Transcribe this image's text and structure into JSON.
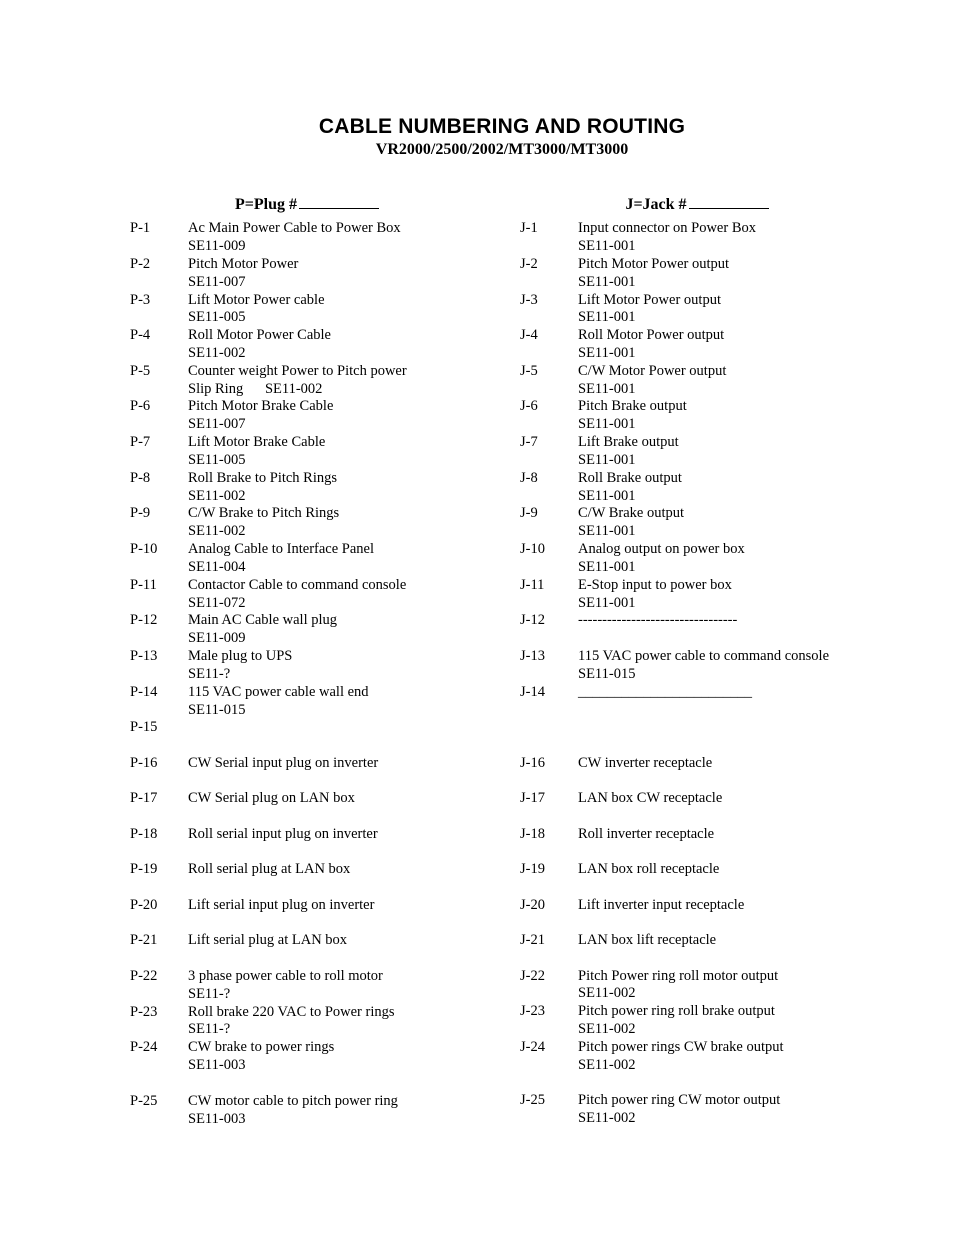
{
  "title": "CABLE NUMBERING AND ROUTING",
  "subtitle": "VR2000/2500/2002/MT3000/MT3000",
  "plug_heading": "P=Plug #",
  "jack_heading": "J=Jack #",
  "plugs": [
    {
      "id": "P-1",
      "l1": "Ac Main Power Cable to Power Box",
      "l2": "SE11-009"
    },
    {
      "id": "P-2",
      "l1": "Pitch Motor Power",
      "l2": "SE11-007"
    },
    {
      "id": "P-3",
      "l1": "Lift Motor Power cable",
      "l2": "SE11-005"
    },
    {
      "id": "P-4",
      "l1": "Roll Motor Power Cable",
      "l2": "SE11-002"
    },
    {
      "id": "P-5",
      "l1": "Counter weight Power to Pitch power",
      "l2": "Slip Ring  SE11-002"
    },
    {
      "id": "P-6",
      "l1": "Pitch Motor Brake Cable",
      "l2": "SE11-007"
    },
    {
      "id": "P-7",
      "l1": "Lift Motor Brake Cable",
      "l2": "SE11-005"
    },
    {
      "id": "P-8",
      "l1": "Roll Brake to Pitch Rings",
      "l2": "SE11-002"
    },
    {
      "id": "P-9",
      "l1": "C/W Brake to Pitch Rings",
      "l2": "SE11-002"
    },
    {
      "id": "P-10",
      "l1": "Analog Cable to Interface Panel",
      "l2": "SE11-004"
    },
    {
      "id": "P-11",
      "l1": "Contactor Cable to command console",
      "l2": "SE11-072"
    },
    {
      "id": "P-12",
      "l1": "Main AC Cable wall plug",
      "l2": "SE11-009"
    },
    {
      "id": "P-13",
      "l1": "Male plug to UPS",
      "l2": "SE11-?"
    },
    {
      "id": "P-14",
      "l1": "115 VAC power cable wall end",
      "l2": "SE11-015"
    },
    {
      "id": "P-15",
      "l1": "",
      "l2": ""
    },
    {
      "id": "P-16",
      "l1": "CW Serial input plug on inverter",
      "l2": ""
    },
    {
      "id": "P-17",
      "l1": "CW Serial plug on LAN box",
      "l2": ""
    },
    {
      "id": "P-18",
      "l1": "Roll serial input plug on inverter",
      "l2": ""
    },
    {
      "id": "P-19",
      "l1": "Roll serial plug at LAN box",
      "l2": ""
    },
    {
      "id": "P-20",
      "l1": "Lift serial input plug on inverter",
      "l2": ""
    },
    {
      "id": "P-21",
      "l1": "Lift serial plug at LAN box",
      "l2": ""
    },
    {
      "id": "P-22",
      "l1": "3 phase power cable to roll motor",
      "l2": "SE11-?"
    },
    {
      "id": "P-23",
      "l1": "Roll brake 220 VAC to Power rings",
      "l2": "SE11-?"
    },
    {
      "id": "P-24",
      "l1": "CW brake  to power rings",
      "l2": "SE11-003"
    },
    {
      "id": "",
      "l1": "",
      "l2": "",
      "spacer": true
    },
    {
      "id": "P-25",
      "l1": "CW motor cable to pitch power ring",
      "l2": "SE11-003"
    }
  ],
  "jacks": [
    {
      "id": "J-1",
      "l1": "Input connector on Power Box",
      "l2": "SE11-001"
    },
    {
      "id": "J-2",
      "l1": "Pitch Motor Power output",
      "l2": "SE11-001"
    },
    {
      "id": "J-3",
      "l1": "Lift Motor Power output",
      "l2": "SE11-001"
    },
    {
      "id": "J-4",
      "l1": "Roll Motor Power output",
      "l2": "SE11-001"
    },
    {
      "id": "J-5",
      "l1": "C/W Motor Power output",
      "l2": "SE11-001"
    },
    {
      "id": "J-6",
      "l1": "Pitch Brake output",
      "l2": "SE11-001"
    },
    {
      "id": "J-7",
      "l1": "Lift Brake output",
      "l2": "SE11-001"
    },
    {
      "id": "J-8",
      "l1": "Roll Brake output",
      "l2": "SE11-001"
    },
    {
      "id": "J-9",
      "l1": "C/W Brake output",
      "l2": "SE11-001"
    },
    {
      "id": "J-10",
      "l1": "Analog output on power box",
      "l2": "SE11-001"
    },
    {
      "id": "J-11",
      "l1": "E-Stop input to power box",
      "l2": "SE11-001"
    },
    {
      "id": "J-12",
      "l1": "---------------------------------",
      "l2": ""
    },
    {
      "id": "J-13",
      "l1": "115 VAC power cable to command console",
      "l2": "SE11-015"
    },
    {
      "id": "J-14",
      "l1": "________________________",
      "l2": ""
    },
    {
      "id": "",
      "l1": "",
      "l2": ""
    },
    {
      "id": "J-16",
      "l1": "CW inverter receptacle",
      "l2": ""
    },
    {
      "id": "J-17",
      "l1": "LAN box  CW receptacle",
      "l2": ""
    },
    {
      "id": "J-18",
      "l1": "Roll inverter receptacle",
      "l2": ""
    },
    {
      "id": "J-19",
      "l1": "LAN box roll receptacle",
      "l2": ""
    },
    {
      "id": "J-20",
      "l1": "Lift inverter input receptacle",
      "l2": ""
    },
    {
      "id": "J-21",
      "l1": "LAN box lift receptacle",
      "l2": ""
    },
    {
      "id": "J-22",
      "l1": "Pitch Power ring roll motor  output",
      "l2": "SE11-002"
    },
    {
      "id": "J-23",
      "l1": "Pitch power ring roll brake output",
      "l2": "SE11-002"
    },
    {
      "id": "J-24",
      "l1": "Pitch power rings CW brake output",
      "l2": "SE11-002"
    },
    {
      "id": "",
      "l1": "",
      "l2": "",
      "spacer": true
    },
    {
      "id": "J-25",
      "l1": "Pitch power ring CW motor output",
      "l2": "SE11-002"
    }
  ]
}
